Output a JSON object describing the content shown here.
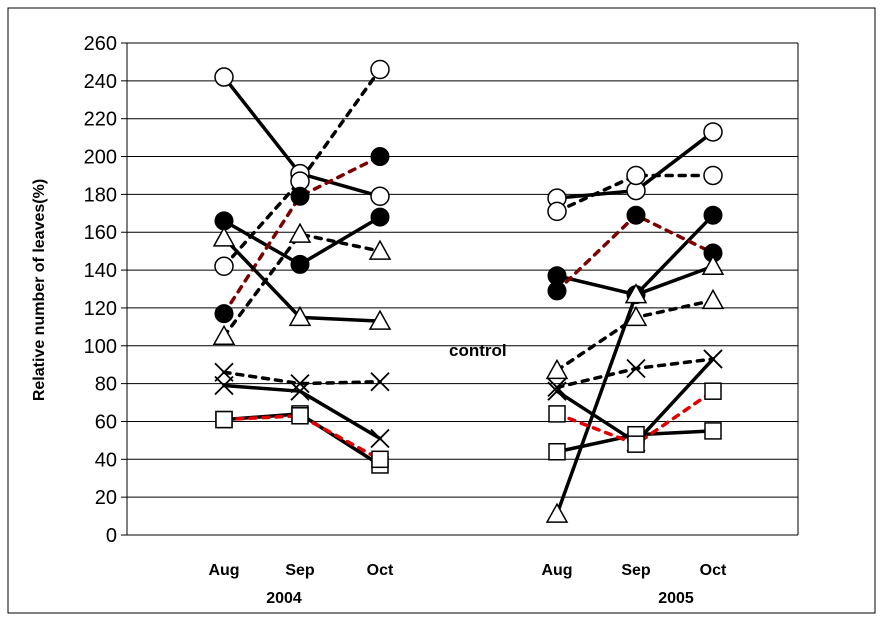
{
  "chart_data": {
    "type": "line",
    "ylabel": "Relative number of leaves(%)",
    "ylim": [
      0,
      260
    ],
    "yticks": [
      "0",
      "20",
      "40",
      "60",
      "80",
      "100",
      "120",
      "140",
      "160",
      "180",
      "200",
      "220",
      "240",
      "260"
    ],
    "grid": "horizontal",
    "categories": [
      "Aug",
      "Sep",
      "Oct"
    ],
    "groups": [
      {
        "year": "2004",
        "months": [
          "Aug",
          "Sep",
          "Oct"
        ]
      },
      {
        "year": "2005",
        "months": [
          "Aug",
          "Sep",
          "Oct"
        ]
      }
    ],
    "annotation": "control",
    "series": [
      {
        "group": "2004",
        "marker": "open-circle",
        "style": "solid",
        "color": "#000000",
        "values": [
          242,
          191,
          179
        ]
      },
      {
        "group": "2004",
        "marker": "open-circle",
        "style": "dotted",
        "color": "#000000",
        "values": [
          142,
          187,
          246
        ]
      },
      {
        "group": "2004",
        "marker": "filled-circle",
        "style": "solid",
        "color": "#000000",
        "values": [
          166,
          143,
          168
        ]
      },
      {
        "group": "2004",
        "marker": "filled-circle",
        "style": "dotted",
        "color": "#7b0000",
        "values": [
          117,
          179,
          200
        ]
      },
      {
        "group": "2004",
        "marker": "triangle",
        "style": "solid",
        "color": "#000000",
        "values": [
          157,
          115,
          113
        ]
      },
      {
        "group": "2004",
        "marker": "triangle",
        "style": "dotted",
        "color": "#000000",
        "values": [
          105,
          159,
          150
        ]
      },
      {
        "group": "2004",
        "marker": "cross",
        "style": "solid",
        "color": "#000000",
        "values": [
          79,
          76,
          51
        ]
      },
      {
        "group": "2004",
        "marker": "cross",
        "style": "dotted",
        "color": "#000000",
        "values": [
          86,
          80,
          81
        ]
      },
      {
        "group": "2004",
        "marker": "square",
        "style": "solid",
        "color": "#000000",
        "values": [
          61,
          64,
          37
        ]
      },
      {
        "group": "2004",
        "marker": "square",
        "style": "dotted",
        "color": "#e00000",
        "values": [
          61,
          63,
          40
        ]
      },
      {
        "group": "2005",
        "marker": "open-circle",
        "style": "solid",
        "color": "#000000",
        "values": [
          178,
          182,
          213
        ]
      },
      {
        "group": "2005",
        "marker": "open-circle",
        "style": "dotted",
        "color": "#000000",
        "values": [
          171,
          190,
          190
        ]
      },
      {
        "group": "2005",
        "marker": "filled-circle",
        "style": "solid",
        "color": "#000000",
        "values": [
          137,
          127,
          169
        ]
      },
      {
        "group": "2005",
        "marker": "filled-circle",
        "style": "dotted",
        "color": "#7b0000",
        "values": [
          129,
          169,
          149
        ]
      },
      {
        "group": "2005",
        "marker": "triangle",
        "style": "solid",
        "color": "#000000",
        "values": [
          11,
          127,
          142
        ]
      },
      {
        "group": "2005",
        "marker": "triangle",
        "style": "dotted",
        "color": "#000000",
        "values": [
          87,
          115,
          124
        ]
      },
      {
        "group": "2005",
        "marker": "cross",
        "style": "solid",
        "color": "#000000",
        "values": [
          76,
          49,
          93
        ]
      },
      {
        "group": "2005",
        "marker": "cross",
        "style": "dotted",
        "color": "#000000",
        "values": [
          78,
          88,
          93
        ]
      },
      {
        "group": "2005",
        "marker": "square",
        "style": "solid",
        "color": "#000000",
        "values": [
          44,
          53,
          55
        ]
      },
      {
        "group": "2005",
        "marker": "square",
        "style": "dotted",
        "color": "#e00000",
        "values": [
          64,
          48,
          76
        ]
      }
    ]
  }
}
